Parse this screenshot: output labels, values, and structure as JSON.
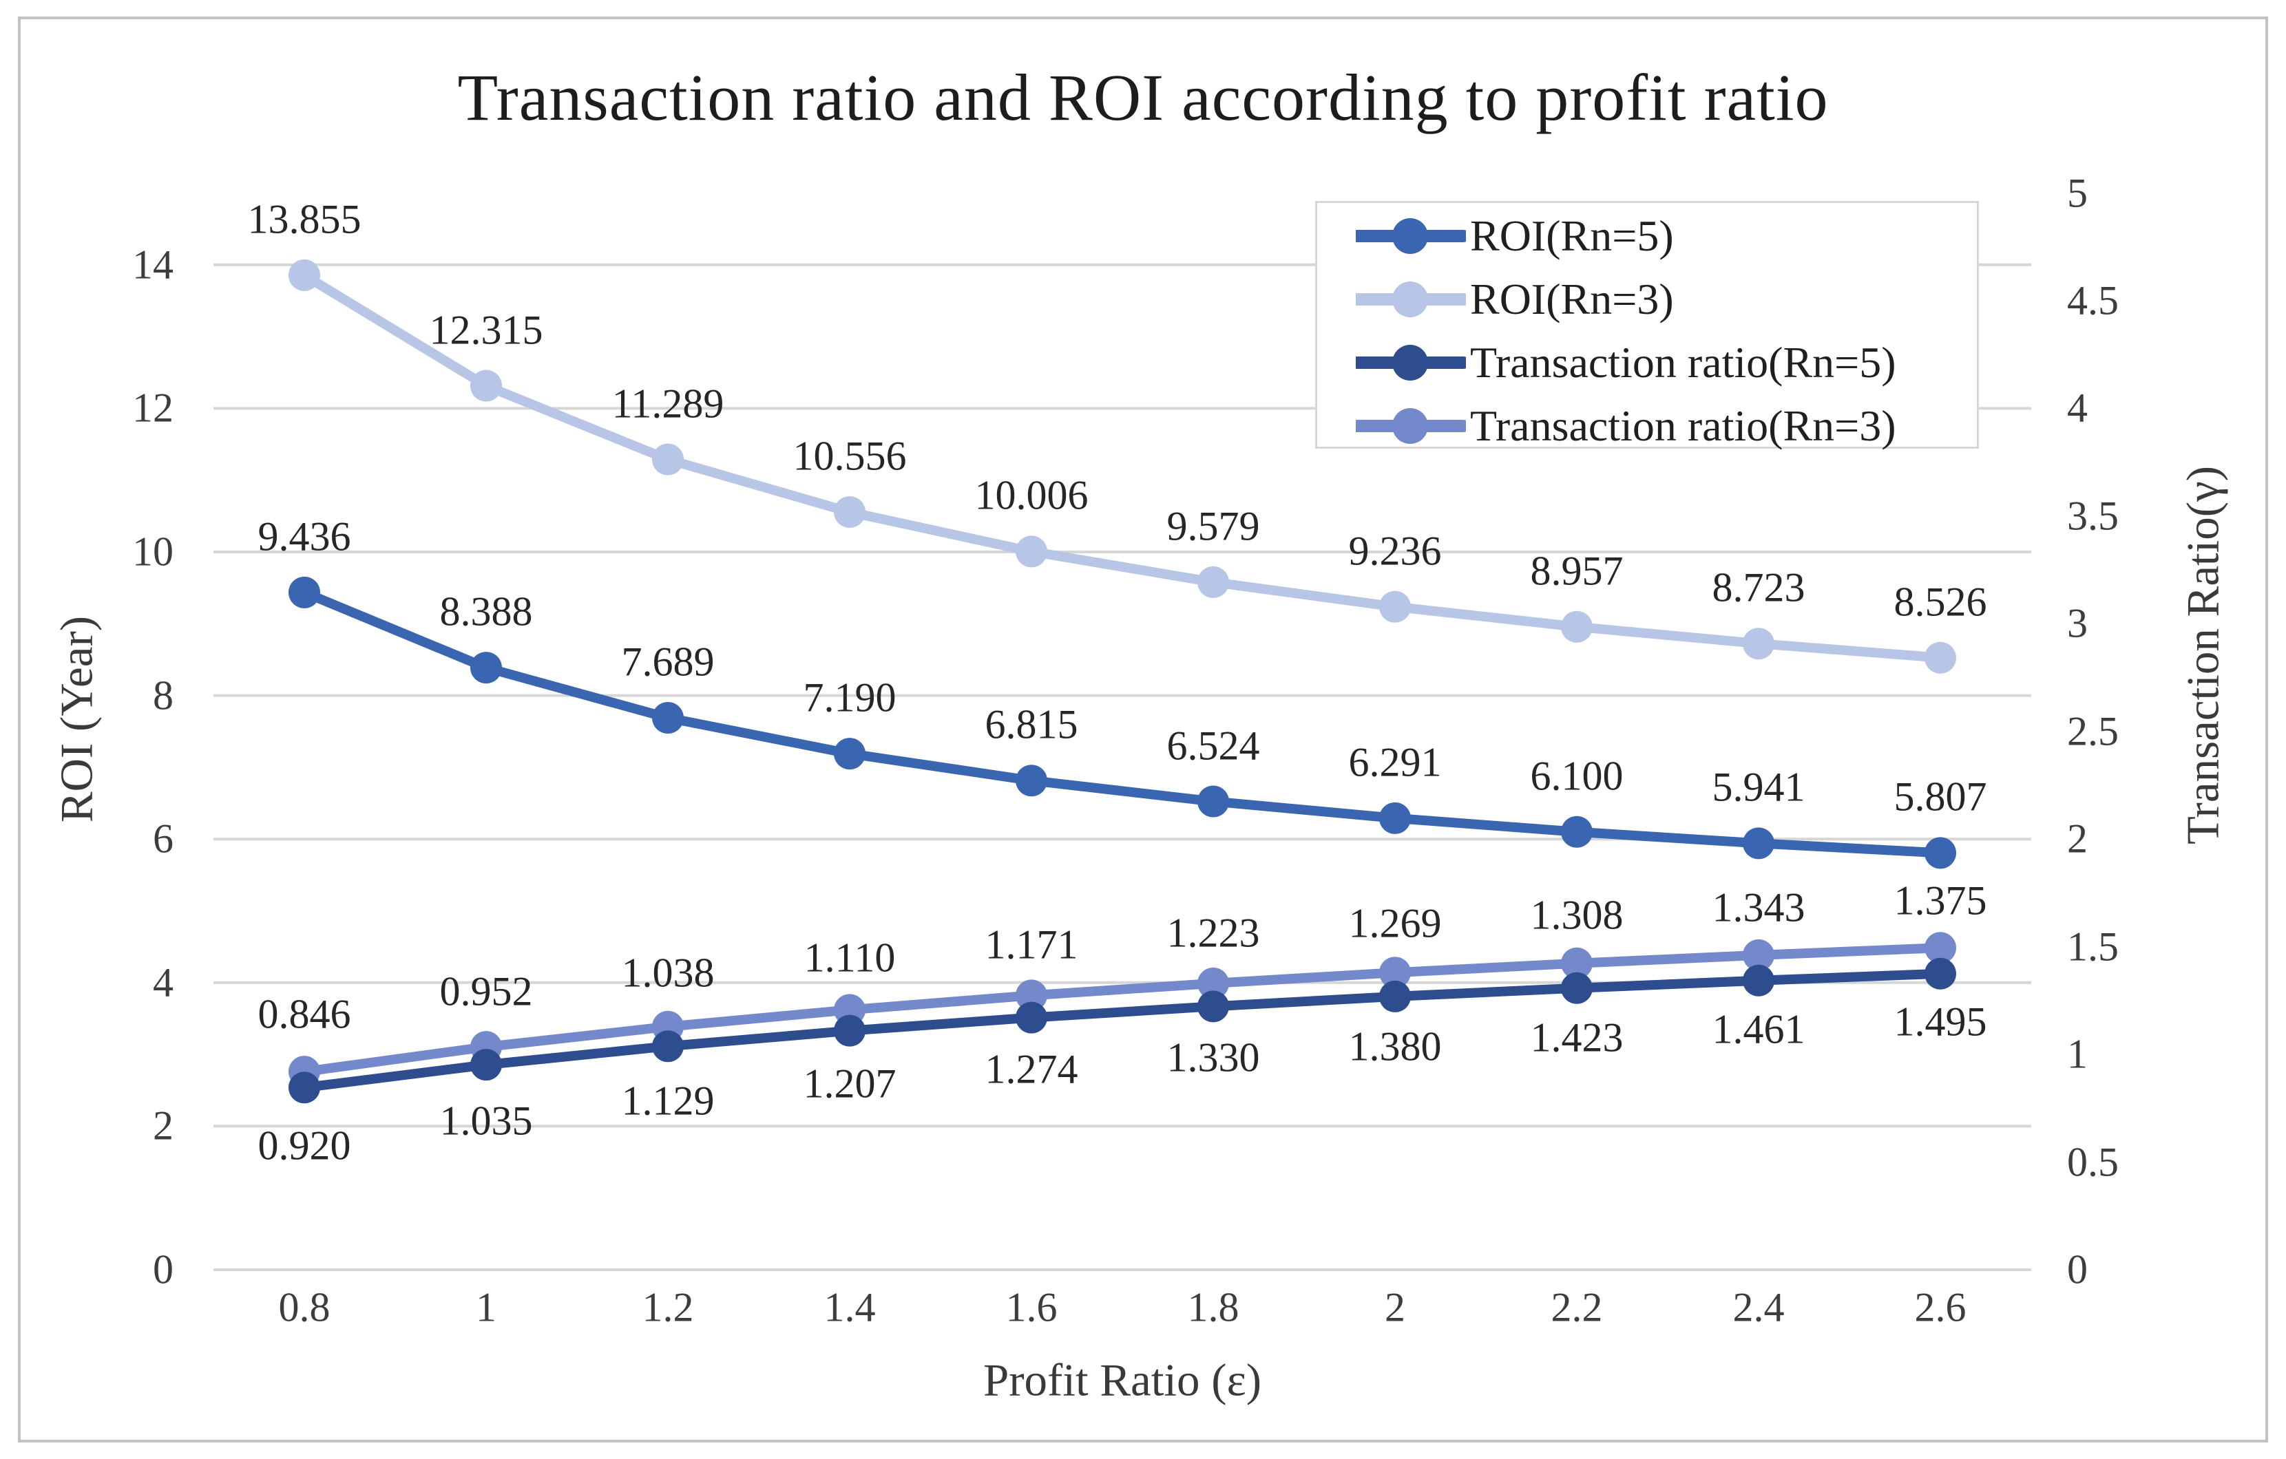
{
  "figure": {
    "title": "Transaction ratio and ROI according to profit ratio",
    "background_color": "#ffffff",
    "border_color": "#c3c3c3",
    "gridline_color": "#d6d6d6",
    "text_color": "#3d3d3d"
  },
  "axes": {
    "left": {
      "title": "ROI (Year)",
      "tick_labels": [
        "0",
        "2",
        "4",
        "6",
        "8",
        "10",
        "12",
        "14"
      ],
      "range": [
        0,
        15
      ]
    },
    "right": {
      "title": "Transaction Ratio(γ)",
      "tick_labels": [
        "0",
        "0.5",
        "1",
        "1.5",
        "2",
        "2.5",
        "3",
        "3.5",
        "4",
        "4.5",
        "5"
      ],
      "range": [
        0,
        5
      ]
    },
    "x": {
      "title": "Profit Ratio (ε)",
      "tick_labels": [
        "0.8",
        "1",
        "1.2",
        "1.4",
        "1.6",
        "1.8",
        "2",
        "2.2",
        "2.4",
        "2.6"
      ]
    }
  },
  "chart_data": {
    "type": "line",
    "title": "Transaction ratio and ROI according to profit ratio",
    "xlabel": "Profit Ratio (ε)",
    "ylabel_left": "ROI (Year)",
    "ylabel_right": "Transaction Ratio(γ)",
    "x": [
      0.8,
      1,
      1.2,
      1.4,
      1.6,
      1.8,
      2,
      2.2,
      2.4,
      2.6
    ],
    "ylim_left": [
      0,
      15
    ],
    "ylim_right": [
      0,
      5
    ],
    "grid": "horizontal",
    "legend_position": "top-right",
    "series": [
      {
        "name": "ROI(Rn=5)",
        "axis": "left",
        "color": "#3a65b0",
        "marker": "circle",
        "label_position": "above",
        "values": [
          9.436,
          8.388,
          7.689,
          7.19,
          6.815,
          6.524,
          6.291,
          6.1,
          5.941,
          5.807
        ]
      },
      {
        "name": "ROI(Rn=3)",
        "axis": "left",
        "color": "#b7c5e7",
        "marker": "circle",
        "label_position": "above",
        "values": [
          13.855,
          12.315,
          11.289,
          10.556,
          10.006,
          9.579,
          9.236,
          8.957,
          8.723,
          8.526
        ]
      },
      {
        "name": "Transaction ratio(Rn=5)",
        "axis": "right",
        "color": "#2d4d8e",
        "marker": "circle",
        "label_position": "above",
        "values": [
          0.846,
          0.952,
          1.038,
          1.11,
          1.171,
          1.223,
          1.269,
          1.308,
          1.343,
          1.375
        ]
      },
      {
        "name": "Transaction ratio(Rn=3)",
        "axis": "right",
        "color": "#7489cb",
        "marker": "circle",
        "label_position": "below",
        "values": [
          0.92,
          1.035,
          1.129,
          1.207,
          1.274,
          1.33,
          1.38,
          1.423,
          1.461,
          1.495
        ]
      }
    ]
  }
}
